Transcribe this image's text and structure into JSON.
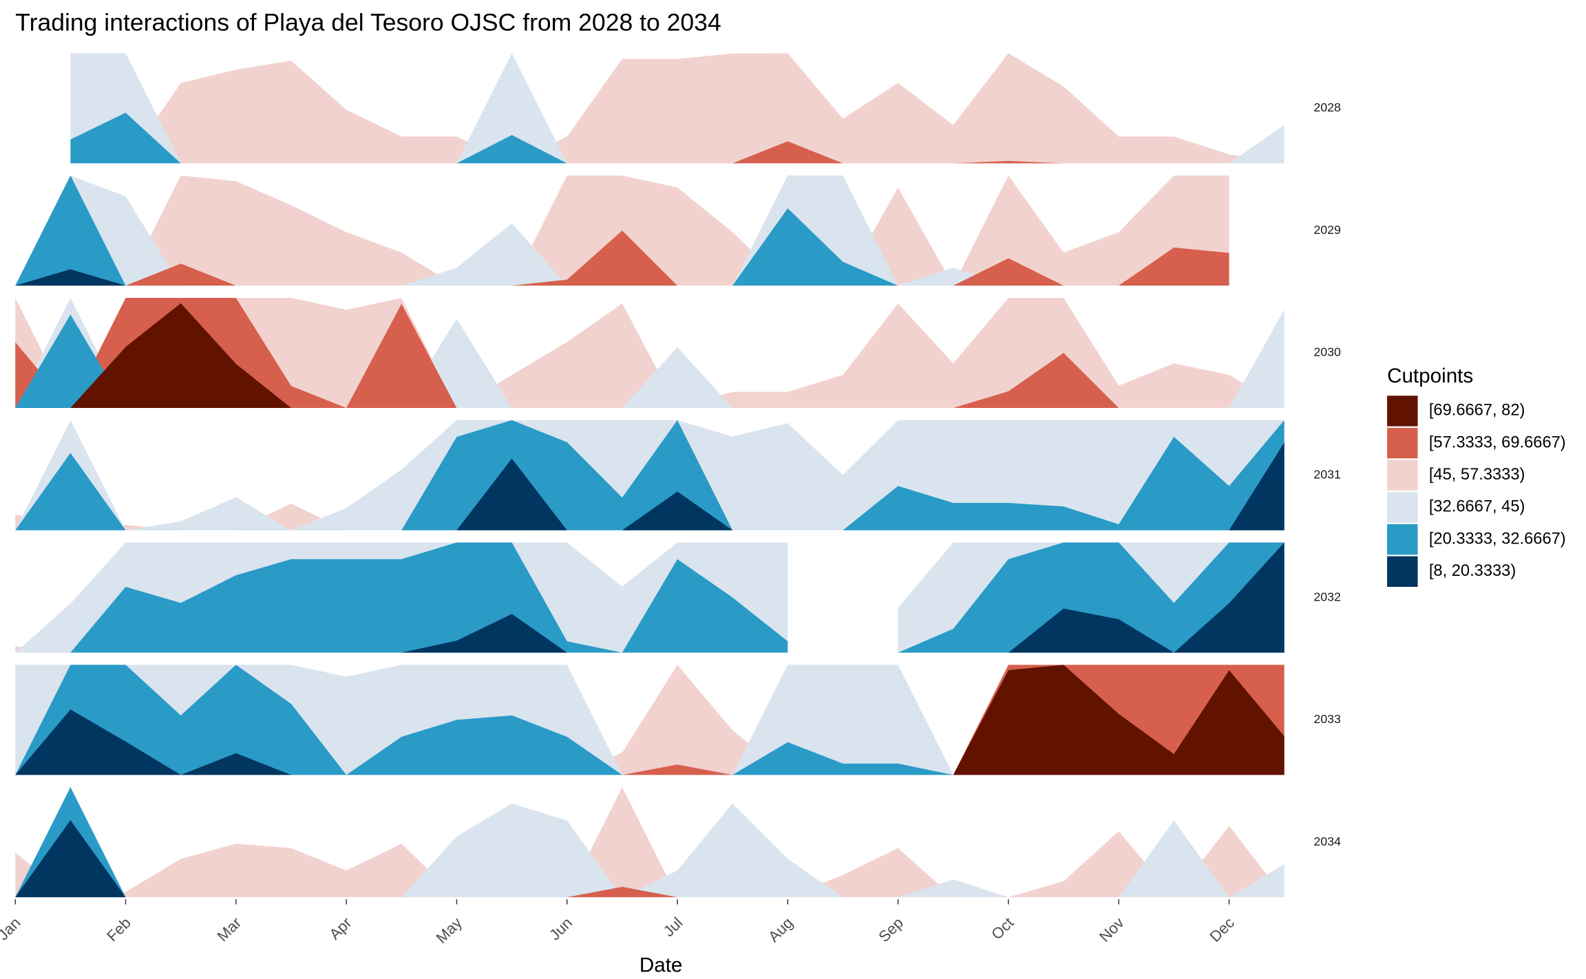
{
  "chart_data": {
    "type": "horizon",
    "title": "Trading interactions of Playa del Tesoro OJSC from 2028 to 2034",
    "x_label": "Date",
    "x": [
      1,
      1.5,
      2,
      2.5,
      3,
      3.5,
      4,
      4.5,
      5,
      5.5,
      6,
      6.5,
      7,
      7.5,
      8,
      8.5,
      9,
      9.5,
      10,
      10.5,
      11,
      11.5,
      12,
      12.5
    ],
    "xlim": [
      1,
      12.6
    ],
    "xticks": [
      {
        "value": 1,
        "label": "Jan"
      },
      {
        "value": 2,
        "label": "Feb"
      },
      {
        "value": 3,
        "label": "Mar"
      },
      {
        "value": 4,
        "label": "Apr"
      },
      {
        "value": 5,
        "label": "May"
      },
      {
        "value": 6,
        "label": "Jun"
      },
      {
        "value": 7,
        "label": "Jul"
      },
      {
        "value": 8,
        "label": "Aug"
      },
      {
        "value": 9,
        "label": "Sep"
      },
      {
        "value": 10,
        "label": "Oct"
      },
      {
        "value": 11,
        "label": "Nov"
      },
      {
        "value": 12,
        "label": "Dec"
      }
    ],
    "cutpoints": [
      8,
      20.3333,
      32.6667,
      45,
      57.3333,
      69.6667,
      82
    ],
    "legend": {
      "title": "Cutpoints",
      "position": "right"
    },
    "bands": [
      {
        "label": "[69.6667, 82)",
        "color": "#611300"
      },
      {
        "label": "[57.3333, 69.6667)",
        "color": "#d6604d"
      },
      {
        "label": "[45, 57.3333)",
        "color": "#f2d2cf"
      },
      {
        "label": "[32.6667, 45)",
        "color": "#d9e4ee"
      },
      {
        "label": "[20.3333, 32.6667)",
        "color": "#2a9ac7"
      },
      {
        "label": "[8, 20.3333)",
        "color": "#003660"
      }
    ],
    "series": [
      {
        "name": "2028",
        "values": [
          null,
          30,
          27,
          54,
          55.5,
          56.5,
          51,
          48,
          48,
          29.5,
          48,
          56.7,
          56.7,
          57.3,
          59.8,
          50,
          54,
          49.3,
          57.6,
          53.6,
          48,
          48,
          46,
          40.7
        ]
      },
      {
        "name": "2029",
        "values": [
          45,
          18.5,
          35,
          59.8,
          56.7,
          54,
          51,
          48.7,
          43,
          38,
          58,
          63.5,
          56,
          51,
          24,
          30,
          56,
          43,
          60.4,
          48.7,
          51,
          61.6,
          61,
          null
        ]
      },
      {
        "name": "2030",
        "values": [
          64.7,
          22.2,
          76.5,
          81.4,
          74.6,
          59.8,
          56,
          69,
          35,
          48.7,
          52.4,
          56.7,
          38.2,
          46.8,
          46.8,
          48.7,
          56.7,
          50,
          59.2,
          63.5,
          47.5,
          50,
          48.7,
          34
        ]
      },
      {
        "name": "2031",
        "values": [
          46.8,
          24,
          45.6,
          44,
          41.3,
          48,
          42.5,
          38.2,
          22.2,
          12.3,
          22.8,
          29,
          16,
          34.5,
          33,
          38.8,
          27.7,
          29.6,
          29.6,
          30,
          32,
          22.2,
          27.7,
          10.5
        ]
      },
      {
        "name": "2032",
        "values": [
          45.7,
          39.5,
          25.3,
          27.1,
          24,
          22.2,
          22.2,
          22.2,
          19,
          16,
          31.4,
          37.6,
          22.2,
          26.5,
          31.4,
          null,
          40,
          30,
          22.2,
          15.4,
          16.6,
          27.1,
          14.8,
          8
        ]
      },
      {
        "name": "2033",
        "values": [
          32.67,
          13,
          16.6,
          26,
          17.9,
          24.7,
          34,
          28.4,
          26.5,
          26,
          28.4,
          47.5,
          58.5,
          50,
          29,
          31.4,
          31.4,
          45,
          81.4,
          82,
          76.5,
          72,
          81.4,
          74
        ]
      },
      {
        "name": "2034",
        "values": [
          50,
          11.7,
          45.6,
          49.3,
          51,
          50.5,
          48,
          51,
          38.2,
          34.5,
          36.4,
          58.5,
          42,
          34.5,
          40.7,
          47.5,
          50.5,
          43,
          45,
          46.8,
          52.4,
          36.4,
          53,
          41.3
        ]
      }
    ]
  }
}
